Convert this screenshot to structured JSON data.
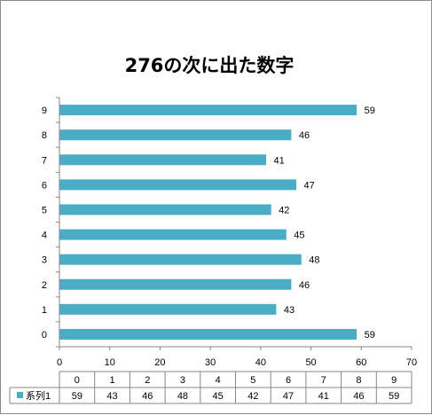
{
  "chart_data": {
    "type": "bar",
    "orientation": "horizontal",
    "title": "276の次に出た数字",
    "categories": [
      "0",
      "1",
      "2",
      "3",
      "4",
      "5",
      "6",
      "7",
      "8",
      "9"
    ],
    "series": [
      {
        "name": "系列1",
        "values": [
          59,
          43,
          46,
          48,
          45,
          42,
          47,
          41,
          46,
          59
        ],
        "color": "#4bacc6"
      }
    ],
    "xlim": [
      0,
      70
    ],
    "x_ticks": [
      0,
      10,
      20,
      30,
      40,
      50,
      60,
      70
    ],
    "grid": false,
    "data_labels": true,
    "legend": "data-table-bottom",
    "data_table": true
  }
}
